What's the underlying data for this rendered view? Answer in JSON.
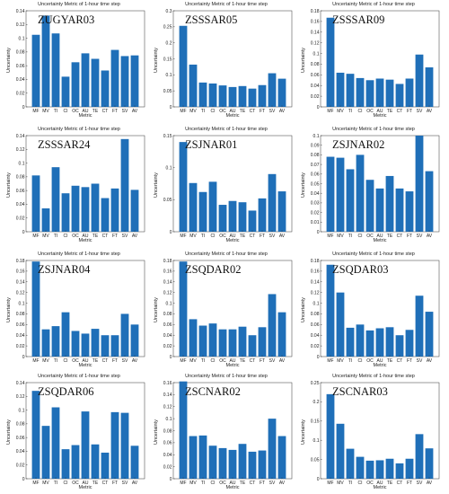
{
  "chart_data": [
    {
      "type": "bar",
      "station": "ZUGYAR03",
      "title": "Uncertainty Metric of 1-hour time step",
      "xlabel": "Metric",
      "ylabel": "Uncertainty",
      "categories": [
        "MF",
        "MV",
        "TI",
        "CI",
        "OC",
        "AU",
        "TE",
        "CT",
        "FT",
        "SV",
        "AV"
      ],
      "values": [
        0.105,
        0.133,
        0.107,
        0.044,
        0.065,
        0.078,
        0.07,
        0.053,
        0.083,
        0.074,
        0.075
      ],
      "ylim": [
        0,
        0.14
      ],
      "yticks": [
        0,
        0.02,
        0.04,
        0.06,
        0.08,
        0.1,
        0.12,
        0.14
      ],
      "yticklabels": [
        "0",
        "0.02",
        "0.04",
        "0.06",
        "0.08",
        "0.1",
        "0.12",
        "0.14"
      ]
    },
    {
      "type": "bar",
      "station": "ZSSSAR05",
      "title": "Uncertainty Metric of 1-hour time step",
      "xlabel": "Metric",
      "ylabel": "Uncertainty",
      "categories": [
        "MF",
        "MV",
        "TI",
        "CI",
        "OC",
        "AU",
        "TE",
        "CT",
        "FT",
        "SV",
        "AV"
      ],
      "values": [
        0.253,
        0.132,
        0.076,
        0.073,
        0.067,
        0.062,
        0.065,
        0.057,
        0.068,
        0.105,
        0.088
      ],
      "ylim": [
        0,
        0.3
      ],
      "yticks": [
        0,
        0.05,
        0.1,
        0.15,
        0.2,
        0.25,
        0.3
      ],
      "yticklabels": [
        "0",
        "0.05",
        "0.1",
        "0.15",
        "0.2",
        "0.25",
        "0.3"
      ]
    },
    {
      "type": "bar",
      "station": "ZSSSAR09",
      "title": "Uncertainty Metric of 1-hour time step",
      "xlabel": "Metric",
      "ylabel": "Uncertainty",
      "categories": [
        "MF",
        "MV",
        "TI",
        "CI",
        "OC",
        "AU",
        "TE",
        "CT",
        "FT",
        "SV",
        "AV"
      ],
      "values": [
        0.167,
        0.064,
        0.062,
        0.054,
        0.05,
        0.053,
        0.051,
        0.043,
        0.053,
        0.098,
        0.074
      ],
      "ylim": [
        0,
        0.18
      ],
      "yticks": [
        0,
        0.02,
        0.04,
        0.06,
        0.08,
        0.1,
        0.12,
        0.14,
        0.16,
        0.18
      ],
      "yticklabels": [
        "0",
        "0.02",
        "0.04",
        "0.06",
        "0.08",
        "0.1",
        "0.12",
        "0.14",
        "0.16",
        "0.18"
      ]
    },
    {
      "type": "bar",
      "station": "ZSSSAR24",
      "title": "Uncertainty Metric of 1-hour time step",
      "xlabel": "Metric",
      "ylabel": "Uncertainty",
      "categories": [
        "MF",
        "MV",
        "TI",
        "CI",
        "OC",
        "AU",
        "TE",
        "CT",
        "FT",
        "SV",
        "AV"
      ],
      "values": [
        0.082,
        0.034,
        0.094,
        0.056,
        0.067,
        0.065,
        0.07,
        0.049,
        0.063,
        0.135,
        0.061
      ],
      "ylim": [
        0,
        0.14
      ],
      "yticks": [
        0,
        0.02,
        0.04,
        0.06,
        0.08,
        0.1,
        0.12,
        0.14
      ],
      "yticklabels": [
        "0",
        "0.02",
        "0.04",
        "0.06",
        "0.08",
        "0.1",
        "0.12",
        "0.14"
      ]
    },
    {
      "type": "bar",
      "station": "ZSJNAR01",
      "title": "Uncertainty Metric of 1-hour time step",
      "xlabel": "Metric",
      "ylabel": "Uncertainty",
      "categories": [
        "MF",
        "MV",
        "TI",
        "CI",
        "OC",
        "AU",
        "TE",
        "CT",
        "FT",
        "SV",
        "AV"
      ],
      "values": [
        0.14,
        0.076,
        0.062,
        0.078,
        0.042,
        0.048,
        0.046,
        0.033,
        0.052,
        0.09,
        0.063
      ],
      "ylim": [
        0,
        0.15
      ],
      "yticks": [
        0,
        0.05,
        0.1,
        0.15
      ],
      "yticklabels": [
        "0",
        "0.05",
        "0.1",
        "0.15"
      ]
    },
    {
      "type": "bar",
      "station": "ZSJNAR02",
      "title": "Uncertainty Metric of 1-hour time step",
      "xlabel": "Metric",
      "ylabel": "Uncertainty",
      "categories": [
        "MF",
        "MV",
        "TI",
        "CI",
        "OC",
        "AU",
        "TE",
        "CT",
        "FT",
        "SV",
        "AV"
      ],
      "values": [
        0.078,
        0.077,
        0.065,
        0.08,
        0.054,
        0.045,
        0.058,
        0.045,
        0.042,
        0.1,
        0.063
      ],
      "ylim": [
        0,
        0.1
      ],
      "yticks": [
        0,
        0.01,
        0.02,
        0.03,
        0.04,
        0.05,
        0.06,
        0.07,
        0.08,
        0.09,
        0.1
      ],
      "yticklabels": [
        "0",
        "0.01",
        "0.02",
        "0.03",
        "0.04",
        "0.05",
        "0.06",
        "0.07",
        "0.08",
        "0.09",
        "0.1"
      ]
    },
    {
      "type": "bar",
      "station": "ZSJNAR04",
      "title": "Uncertainty Metric of 1-hour time step",
      "xlabel": "Metric",
      "ylabel": "Uncertainty",
      "categories": [
        "MF",
        "MV",
        "TI",
        "CI",
        "OC",
        "AU",
        "TE",
        "CT",
        "FT",
        "SV",
        "AV"
      ],
      "values": [
        0.178,
        0.051,
        0.057,
        0.083,
        0.048,
        0.043,
        0.052,
        0.04,
        0.04,
        0.08,
        0.06
      ],
      "ylim": [
        0,
        0.18
      ],
      "yticks": [
        0,
        0.02,
        0.04,
        0.06,
        0.08,
        0.1,
        0.12,
        0.14,
        0.16,
        0.18
      ],
      "yticklabels": [
        "0",
        "0.02",
        "0.04",
        "0.06",
        "0.08",
        "0.1",
        "0.12",
        "0.14",
        "0.16",
        "0.18"
      ]
    },
    {
      "type": "bar",
      "station": "ZSQDAR02",
      "title": "Uncertainty Metric of 1-hour time step",
      "xlabel": "Metric",
      "ylabel": "Uncertainty",
      "categories": [
        "MF",
        "MV",
        "TI",
        "CI",
        "OC",
        "AU",
        "TE",
        "CT",
        "FT",
        "SV",
        "AV"
      ],
      "values": [
        0.178,
        0.07,
        0.058,
        0.062,
        0.051,
        0.051,
        0.056,
        0.04,
        0.055,
        0.117,
        0.083
      ],
      "ylim": [
        0,
        0.18
      ],
      "yticks": [
        0,
        0.02,
        0.04,
        0.06,
        0.08,
        0.1,
        0.12,
        0.14,
        0.16,
        0.18
      ],
      "yticklabels": [
        "0",
        "0.02",
        "0.04",
        "0.06",
        "0.08",
        "0.1",
        "0.12",
        "0.14",
        "0.16",
        "0.18"
      ]
    },
    {
      "type": "bar",
      "station": "ZSQDAR03",
      "title": "Uncertainty Metric of 1-hour time step",
      "xlabel": "Metric",
      "ylabel": "Uncertainty",
      "categories": [
        "MF",
        "MV",
        "TI",
        "CI",
        "OC",
        "AU",
        "TE",
        "CT",
        "FT",
        "SV",
        "AV"
      ],
      "values": [
        0.172,
        0.12,
        0.054,
        0.06,
        0.049,
        0.053,
        0.055,
        0.04,
        0.05,
        0.114,
        0.084
      ],
      "ylim": [
        0,
        0.18
      ],
      "yticks": [
        0,
        0.02,
        0.04,
        0.06,
        0.08,
        0.1,
        0.12,
        0.14,
        0.16,
        0.18
      ],
      "yticklabels": [
        "0",
        "0.02",
        "0.04",
        "0.06",
        "0.08",
        "0.1",
        "0.12",
        "0.14",
        "0.16",
        "0.18"
      ]
    },
    {
      "type": "bar",
      "station": "ZSQDAR06",
      "title": "Uncertainty Metric of 1-hour time step",
      "xlabel": "Metric",
      "ylabel": "Uncertainty",
      "categories": [
        "MF",
        "MV",
        "TI",
        "CI",
        "OC",
        "AU",
        "TE",
        "CT",
        "FT",
        "SV",
        "AV"
      ],
      "values": [
        0.128,
        0.077,
        0.104,
        0.043,
        0.049,
        0.098,
        0.05,
        0.038,
        0.097,
        0.096,
        0.048
      ],
      "ylim": [
        0,
        0.14
      ],
      "yticks": [
        0,
        0.02,
        0.04,
        0.06,
        0.08,
        0.1,
        0.12,
        0.14
      ],
      "yticklabels": [
        "0",
        "0.02",
        "0.04",
        "0.06",
        "0.08",
        "0.1",
        "0.12",
        "0.14"
      ]
    },
    {
      "type": "bar",
      "station": "ZSCNAR02",
      "title": "Uncertainty Metric of 1-hour time step",
      "xlabel": "Metric",
      "ylabel": "Uncertainty",
      "categories": [
        "MF",
        "MV",
        "TI",
        "CI",
        "OC",
        "AU",
        "TE",
        "CT",
        "FT",
        "SV",
        "AV"
      ],
      "values": [
        0.162,
        0.071,
        0.072,
        0.055,
        0.051,
        0.048,
        0.058,
        0.045,
        0.047,
        0.1,
        0.071
      ],
      "ylim": [
        0,
        0.16
      ],
      "yticks": [
        0,
        0.02,
        0.04,
        0.06,
        0.08,
        0.1,
        0.12,
        0.14,
        0.16
      ],
      "yticklabels": [
        "0",
        "0.02",
        "0.04",
        "0.06",
        "0.08",
        "0.1",
        "0.12",
        "0.14",
        "0.16"
      ]
    },
    {
      "type": "bar",
      "station": "ZSCNAR03",
      "title": "Uncertainty Metric of 1-hour time step",
      "xlabel": "Metric",
      "ylabel": "Uncertainty",
      "categories": [
        "MF",
        "MV",
        "TI",
        "CI",
        "OC",
        "AU",
        "TE",
        "CT",
        "FT",
        "SV",
        "AV"
      ],
      "values": [
        0.22,
        0.143,
        0.078,
        0.057,
        0.047,
        0.048,
        0.052,
        0.04,
        0.052,
        0.116,
        0.079
      ],
      "ylim": [
        0,
        0.25
      ],
      "yticks": [
        0,
        0.05,
        0.1,
        0.15,
        0.2,
        0.25
      ],
      "yticklabels": [
        "0",
        "0.05",
        "0.1",
        "0.15",
        "0.2",
        "0.25"
      ]
    }
  ],
  "colors": {
    "bar": "#1f6fb8",
    "axis": "#333333",
    "text": "#222222"
  }
}
